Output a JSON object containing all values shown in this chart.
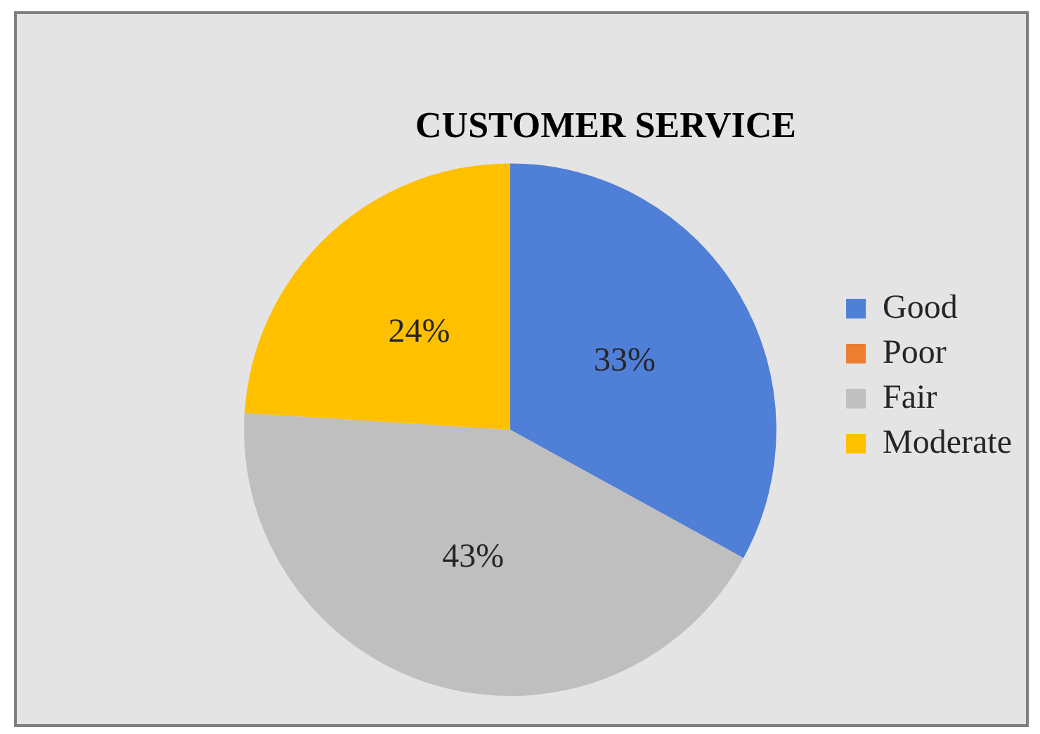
{
  "chart_data": {
    "type": "pie",
    "title": "CUSTOMER SERVICE",
    "categories": [
      "Good",
      "Poor",
      "Fair",
      "Moderate"
    ],
    "values": [
      33,
      0,
      43,
      24
    ],
    "value_labels": [
      "33%",
      null,
      "43%",
      "24%"
    ],
    "colors": [
      "#4f7fd6",
      "#ed7d31",
      "#bfbfbf",
      "#ffc000"
    ],
    "legend": "right"
  }
}
